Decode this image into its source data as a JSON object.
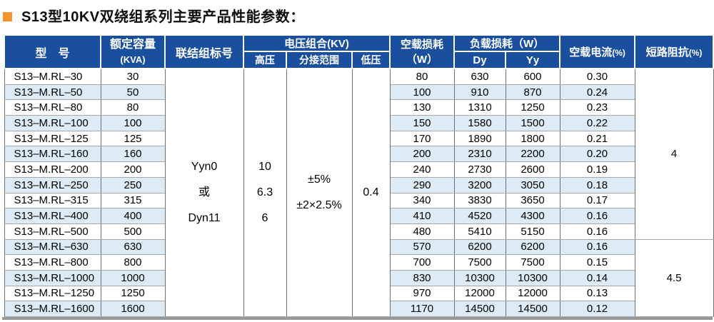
{
  "title": {
    "text": "S13型10KV双绕组系列主要产品性能参数："
  },
  "colors": {
    "header_bg": "#1A4F9E",
    "stripe": "#DCEBF6",
    "accent_bullet": "#F5952B",
    "border": "#6E6E6E",
    "shadow_bar": "#97999B"
  },
  "table": {
    "headers": {
      "model": "型　号",
      "capacity_line1": "额定容量",
      "capacity_line2": "(KVA)",
      "connection": "联结组标号",
      "voltage_group": "电压组合(KV)",
      "hv": "高压",
      "tap_range": "分接范围",
      "lv": "低压",
      "no_load_loss_line1": "空载损耗",
      "no_load_loss_line2": "（W）",
      "load_loss": "负载损耗（W）",
      "dy": "Dy",
      "yy": "Yy",
      "no_load_current": "空载电流",
      "no_load_current_unit": "(%)",
      "impedance": "短路阻抗",
      "impedance_unit": "(%)"
    },
    "merged": {
      "connection": [
        "Yyn0",
        "或",
        "Dyn11"
      ],
      "hv": [
        "10",
        "6.3",
        "6"
      ],
      "tap_range": [
        "±5%",
        "±2×2.5%"
      ],
      "lv": "0.4",
      "impedance_top": "4",
      "impedance_top_rows": 11,
      "impedance_bottom": "4.5",
      "impedance_bottom_rows": 5
    },
    "rows": [
      {
        "model": "S13–M.RL–30",
        "kva": "30",
        "no_load": "80",
        "dy": "630",
        "yy": "600",
        "current": "0.30"
      },
      {
        "model": "S13–M.RL–50",
        "kva": "50",
        "no_load": "100",
        "dy": "910",
        "yy": "870",
        "current": "0.24"
      },
      {
        "model": "S13–M.RL–80",
        "kva": "80",
        "no_load": "130",
        "dy": "1310",
        "yy": "1250",
        "current": "0.23"
      },
      {
        "model": "S13–M.RL–100",
        "kva": "100",
        "no_load": "150",
        "dy": "1580",
        "yy": "1500",
        "current": "0.22"
      },
      {
        "model": "S13–M.RL–125",
        "kva": "125",
        "no_load": "170",
        "dy": "1890",
        "yy": "1800",
        "current": "0.21"
      },
      {
        "model": "S13–M.RL–160",
        "kva": "160",
        "no_load": "200",
        "dy": "2310",
        "yy": "2200",
        "current": "0.20"
      },
      {
        "model": "S13–M.RL–200",
        "kva": "200",
        "no_load": "240",
        "dy": "2730",
        "yy": "2600",
        "current": "0.19"
      },
      {
        "model": "S13–M.RL–250",
        "kva": "250",
        "no_load": "290",
        "dy": "3200",
        "yy": "3050",
        "current": "0.18"
      },
      {
        "model": "S13–M.RL–315",
        "kva": "315",
        "no_load": "340",
        "dy": "3830",
        "yy": "3650",
        "current": "0.17"
      },
      {
        "model": "S13–M.RL–400",
        "kva": "400",
        "no_load": "410",
        "dy": "4520",
        "yy": "4300",
        "current": "0.16"
      },
      {
        "model": "S13–M.RL–500",
        "kva": "500",
        "no_load": "480",
        "dy": "5410",
        "yy": "5150",
        "current": "0.16"
      },
      {
        "model": "S13–M.RL–630",
        "kva": "630",
        "no_load": "570",
        "dy": "6200",
        "yy": "6200",
        "current": "0.16"
      },
      {
        "model": "S13–M.RL–800",
        "kva": "800",
        "no_load": "700",
        "dy": "7500",
        "yy": "7500",
        "current": "0.15"
      },
      {
        "model": "S13–M.RL–1000",
        "kva": "1000",
        "no_load": "830",
        "dy": "10300",
        "yy": "10300",
        "current": "0.14"
      },
      {
        "model": "S13–M.RL–1250",
        "kva": "1250",
        "no_load": "970",
        "dy": "12000",
        "yy": "12000",
        "current": "0.13"
      },
      {
        "model": "S13–M.RL–1600",
        "kva": "1600",
        "no_load": "1170",
        "dy": "14500",
        "yy": "14500",
        "current": "0.12"
      }
    ]
  }
}
